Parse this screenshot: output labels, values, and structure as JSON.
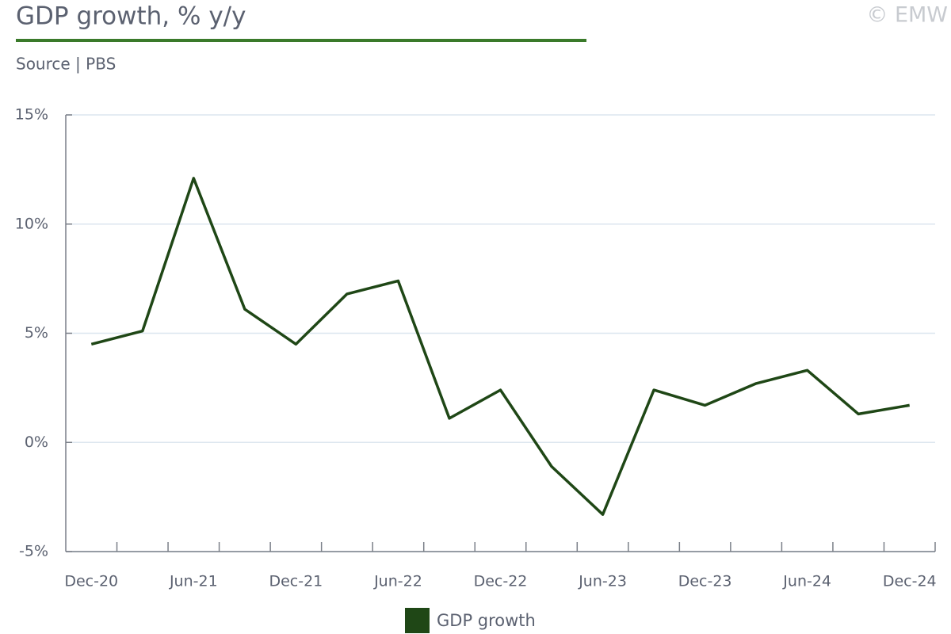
{
  "chart_data": {
    "type": "line",
    "title": "GDP growth, % y/y",
    "subtitle": "Source | PBS",
    "watermark": "© EMW",
    "categories": [
      "Dec-20",
      null,
      "Jun-21",
      null,
      "Dec-21",
      null,
      "Jun-22",
      null,
      "Dec-22",
      null,
      "Jun-23",
      null,
      "Dec-23",
      null,
      "Jun-24",
      null,
      "Dec-24"
    ],
    "series": [
      {
        "name": "GDP growth",
        "color": "#1f4716",
        "values": [
          4.5,
          5.1,
          12.1,
          6.1,
          4.5,
          6.8,
          7.4,
          1.1,
          2.4,
          -1.1,
          -3.3,
          2.4,
          1.7,
          2.7,
          3.3,
          1.3,
          1.7
        ]
      }
    ],
    "ylim": [
      -5,
      15
    ],
    "yticks": [
      {
        "value": -5,
        "label": "-5%"
      },
      {
        "value": 0,
        "label": "0%"
      },
      {
        "value": 5,
        "label": "5%"
      },
      {
        "value": 10,
        "label": "10%"
      },
      {
        "value": 15,
        "label": "15%"
      }
    ],
    "grid": true,
    "legend": "bottom"
  }
}
